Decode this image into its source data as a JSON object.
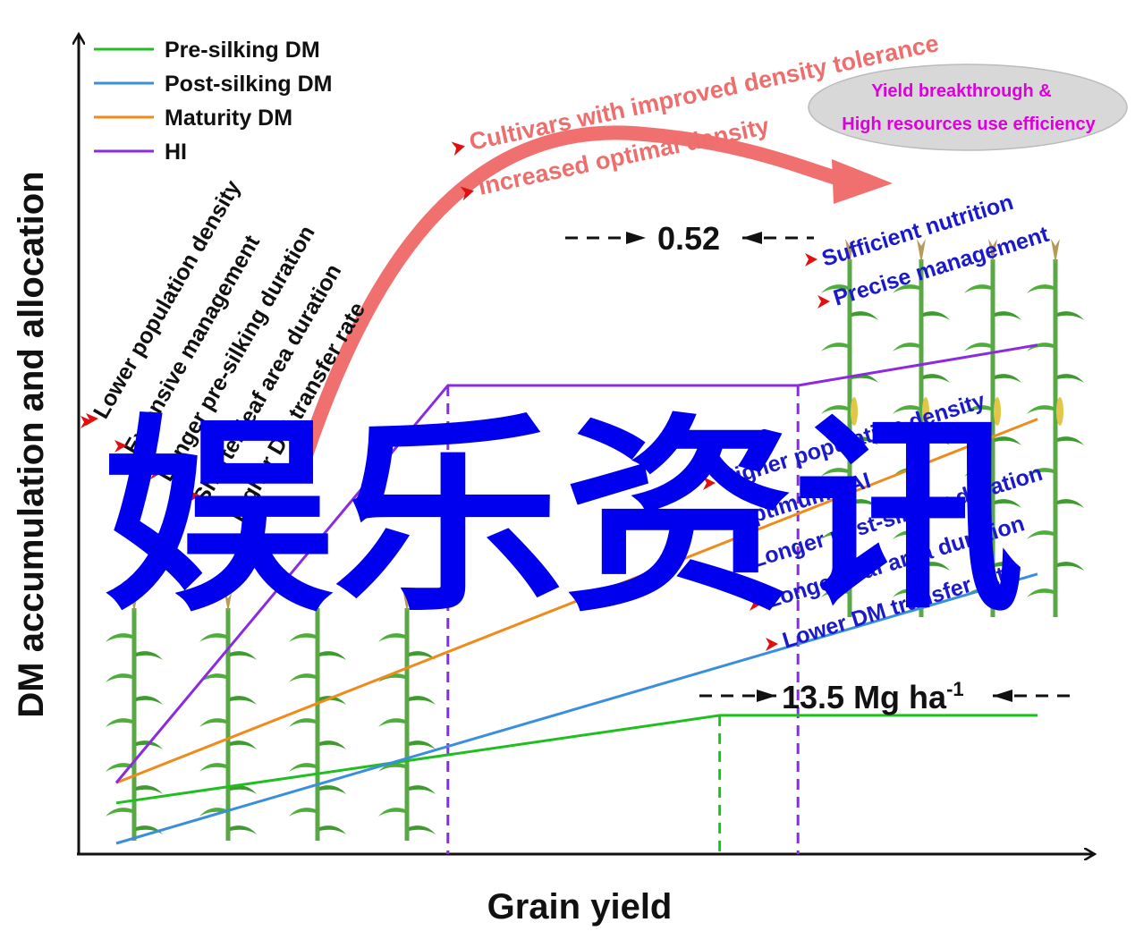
{
  "axes": {
    "ylabel": "DM accumulation and allocation",
    "xlabel": "Grain yield"
  },
  "legend": [
    {
      "label": "Pre-silking DM",
      "color": "#1fbf1f"
    },
    {
      "label": "Post-silking DM",
      "color": "#3a8fdc"
    },
    {
      "label": "Maturity DM",
      "color": "#f08a1a"
    },
    {
      "label": "HI",
      "color": "#8a2be2"
    }
  ],
  "chart_data": {
    "type": "line",
    "xlabel": "Grain yield",
    "ylabel": "DM accumulation and allocation",
    "note_units": "schematic; x and y are fractions of the axis range",
    "series": [
      {
        "name": "Pre-silking DM",
        "x": [
          0.0,
          0.655,
          1.0
        ],
        "y": [
          0.06,
          0.19,
          0.19
        ]
      },
      {
        "name": "Post-silking DM",
        "x": [
          0.0,
          1.0
        ],
        "y": [
          0.0,
          0.4
        ]
      },
      {
        "name": "Maturity DM",
        "x": [
          0.0,
          1.0
        ],
        "y": [
          0.09,
          0.63
        ]
      },
      {
        "name": "HI",
        "x": [
          0.0,
          0.36,
          0.74,
          1.0
        ],
        "y": [
          0.09,
          0.68,
          0.68,
          0.74
        ]
      }
    ],
    "verticals": [
      {
        "x": 0.36,
        "color": "#8a2be2"
      },
      {
        "x": 0.655,
        "color": "#1fbf1f"
      },
      {
        "x": 0.74,
        "color": "#8a2be2"
      }
    ]
  },
  "annotations": {
    "hi_value": "0.52",
    "yield_value_main": "13.5 Mg ha",
    "yield_value_sup": "-1",
    "top_ellipse_line1": "Yield breakthrough &",
    "top_ellipse_line2": "High resources use efficiency",
    "arrow_text_1": "Cultivars with improved density tolerance",
    "arrow_text_2": "Increased optimal density",
    "left_factors": [
      "Lower population density",
      "Extensive management",
      "Longer pre-silking duration",
      "Shorter leaf area duration",
      "Higher DM transfer rate"
    ],
    "right_top_factors": [
      "Sufficient nutrition",
      "Precise management"
    ],
    "right_factors": [
      "Higher population density",
      "Optimum LAI",
      "Longer post-silking duration",
      "Longer leaf area duration",
      "Lower DM transfer rate"
    ]
  },
  "watermark": "娱乐资讯",
  "colors": {
    "presilk": "#1fbf1f",
    "postsilk": "#3a8fdc",
    "maturity": "#f08a1a",
    "hi": "#8a2be2",
    "big_arrow": "#f07070",
    "red_text": "#ee6e6e",
    "blue_text": "#1a1acc",
    "magenta": "#dd00dd",
    "watermark": "#0000ee"
  }
}
